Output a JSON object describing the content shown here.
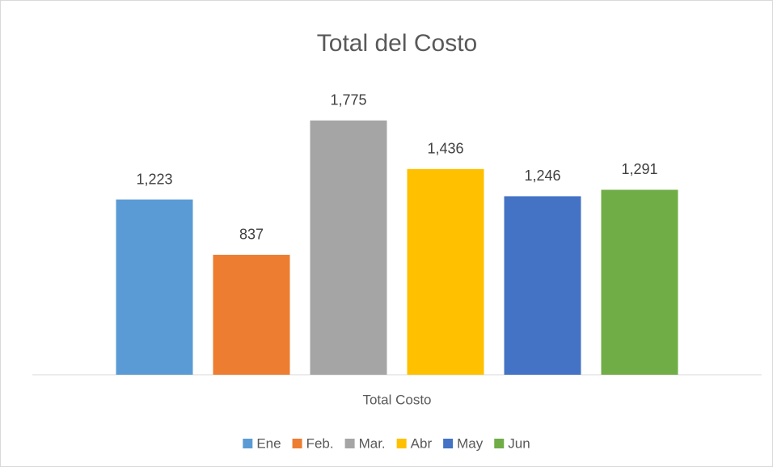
{
  "chart_data": {
    "type": "bar",
    "title": "Total del Costo",
    "categories": [
      "Total Costo"
    ],
    "series": [
      {
        "name": "Ene",
        "color": "#5b9bd5",
        "values": [
          1223
        ],
        "value_labels": [
          "1,223"
        ]
      },
      {
        "name": "Feb.",
        "color": "#ed7d31",
        "values": [
          837
        ],
        "value_labels": [
          "837"
        ]
      },
      {
        "name": "Mar.",
        "color": "#a5a5a5",
        "values": [
          1775
        ],
        "value_labels": [
          "1,775"
        ]
      },
      {
        "name": "Abr",
        "color": "#ffc000",
        "values": [
          1436
        ],
        "value_labels": [
          "1,436"
        ]
      },
      {
        "name": "May",
        "color": "#4472c4",
        "values": [
          1246
        ],
        "value_labels": [
          "1,246"
        ]
      },
      {
        "name": "Jun",
        "color": "#70ad47",
        "values": [
          1291
        ],
        "value_labels": [
          "1,291"
        ]
      }
    ],
    "ylim": [
      0,
      2000
    ],
    "legend": "bottom"
  }
}
